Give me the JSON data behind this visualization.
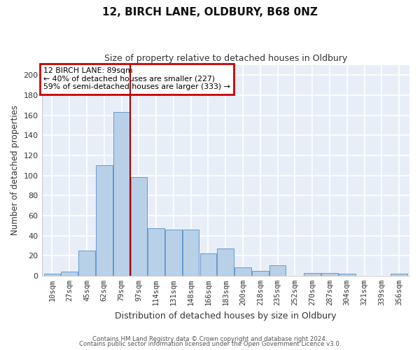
{
  "title1": "12, BIRCH LANE, OLDBURY, B68 0NZ",
  "title2": "Size of property relative to detached houses in Oldbury",
  "xlabel": "Distribution of detached houses by size in Oldbury",
  "ylabel": "Number of detached properties",
  "categories": [
    "10sqm",
    "27sqm",
    "45sqm",
    "62sqm",
    "79sqm",
    "97sqm",
    "114sqm",
    "131sqm",
    "148sqm",
    "166sqm",
    "183sqm",
    "200sqm",
    "218sqm",
    "235sqm",
    "252sqm",
    "270sqm",
    "287sqm",
    "304sqm",
    "321sqm",
    "339sqm",
    "356sqm"
  ],
  "values": [
    2,
    4,
    25,
    110,
    163,
    98,
    47,
    46,
    46,
    22,
    27,
    8,
    5,
    10,
    0,
    3,
    3,
    2,
    0,
    0,
    2
  ],
  "bar_color": "#b8d0e8",
  "bar_edge_color": "#6699cc",
  "fig_background_color": "#ffffff",
  "plot_background_color": "#e8eef8",
  "grid_color": "#ffffff",
  "annotation_box_text": "12 BIRCH LANE: 89sqm\n← 40% of detached houses are smaller (227)\n59% of semi-detached houses are larger (333) →",
  "annotation_box_edge_color": "#cc0000",
  "vline_x": 4.5,
  "vline_color": "#aa0000",
  "footer1": "Contains HM Land Registry data © Crown copyright and database right 2024.",
  "footer2": "Contains public sector information licensed under the Open Government Licence v3.0.",
  "ylim": [
    0,
    210
  ],
  "yticks": [
    0,
    20,
    40,
    60,
    80,
    100,
    120,
    140,
    160,
    180,
    200
  ]
}
